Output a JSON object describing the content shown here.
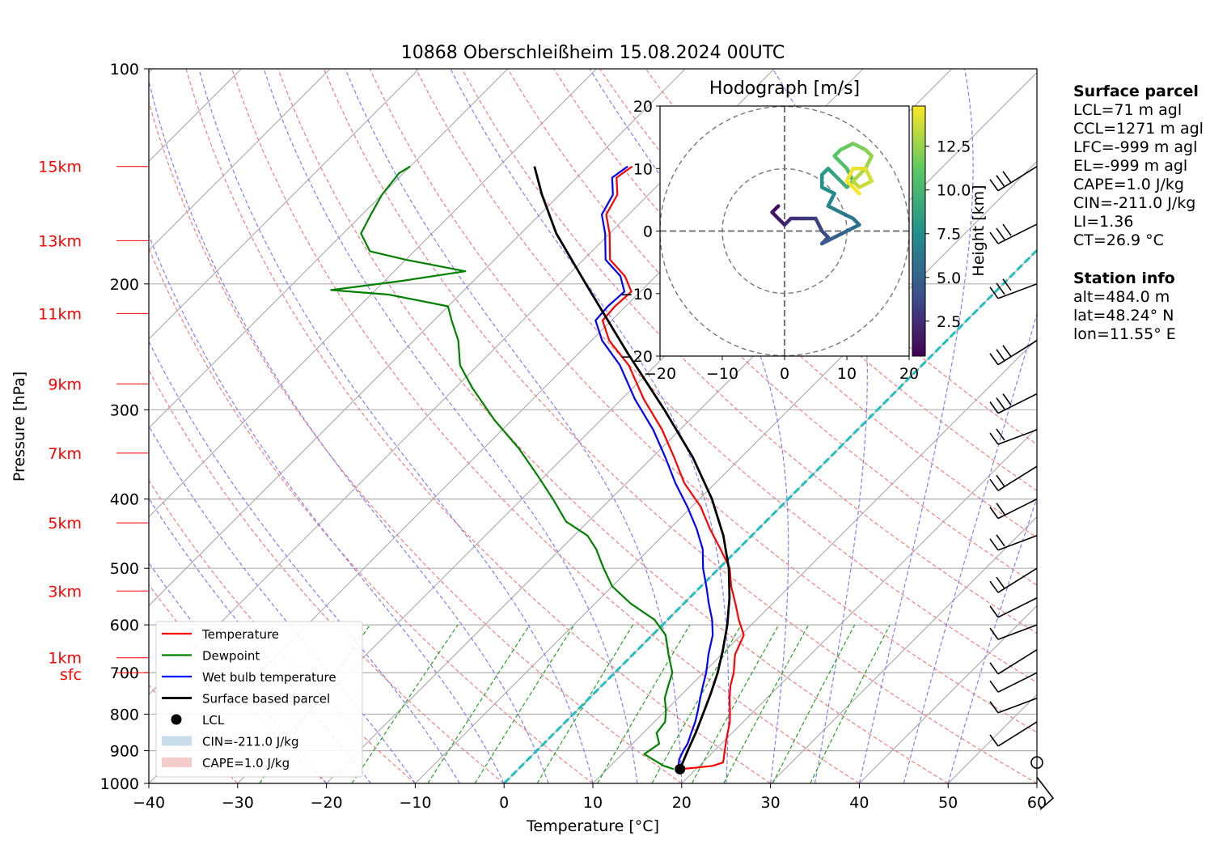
{
  "chart_data": {
    "type": "line",
    "title": "10868 Oberschleißheim 15.08.2024 00UTC",
    "xlabel": "Temperature [°C]",
    "ylabel": "Pressure [hPa]",
    "xlim": [
      -40,
      60
    ],
    "ylim": [
      1000,
      100
    ],
    "y_scale": "log",
    "skew": "45 degrees",
    "grid": true,
    "legend_position": "lower-left",
    "x_ticks": [
      "−40",
      "−30",
      "−20",
      "−10",
      "0",
      "10",
      "20",
      "30",
      "40",
      "50",
      "60"
    ],
    "y_ticks": [
      "100",
      "200",
      "300",
      "400",
      "500",
      "600",
      "700",
      "800",
      "900",
      "1000"
    ],
    "height_labels": [
      {
        "label": "15km",
        "p": 137
      },
      {
        "label": "13km",
        "p": 174
      },
      {
        "label": "11km",
        "p": 220
      },
      {
        "label": "9km",
        "p": 276
      },
      {
        "label": "7km",
        "p": 345
      },
      {
        "label": "5km",
        "p": 432
      },
      {
        "label": "3km",
        "p": 538
      },
      {
        "label": "1km",
        "p": 667
      },
      {
        "label": "sfc",
        "p": 700
      }
    ],
    "series": [
      {
        "name": "Temperature",
        "color": "#ff0000",
        "points": [
          [
            955,
            18.4
          ],
          [
            950,
            20.0
          ],
          [
            945,
            21.5
          ],
          [
            935,
            22.3
          ],
          [
            925,
            22.0
          ],
          [
            910,
            21.5
          ],
          [
            880,
            20.5
          ],
          [
            850,
            19.5
          ],
          [
            820,
            18.5
          ],
          [
            790,
            17.2
          ],
          [
            760,
            15.8
          ],
          [
            730,
            14.5
          ],
          [
            700,
            13.4
          ],
          [
            660,
            11.5
          ],
          [
            620,
            10.3
          ],
          [
            590,
            8.0
          ],
          [
            560,
            5.8
          ],
          [
            530,
            3.4
          ],
          [
            500,
            1.2
          ],
          [
            470,
            -2.0
          ],
          [
            440,
            -5.5
          ],
          [
            410,
            -9.0
          ],
          [
            380,
            -13.5
          ],
          [
            350,
            -17.5
          ],
          [
            320,
            -22.0
          ],
          [
            290,
            -27.5
          ],
          [
            260,
            -33.0
          ],
          [
            240,
            -38.0
          ],
          [
            225,
            -41.0
          ],
          [
            215,
            -41.2
          ],
          [
            205,
            -41.0
          ],
          [
            195,
            -43.5
          ],
          [
            185,
            -47.0
          ],
          [
            170,
            -50.0
          ],
          [
            160,
            -52.5
          ],
          [
            150,
            -53.5
          ],
          [
            142,
            -55.5
          ],
          [
            137,
            -55.0
          ]
        ]
      },
      {
        "name": "Dewpoint",
        "color": "#008000",
        "points": [
          [
            955,
            17.5
          ],
          [
            945,
            16.0
          ],
          [
            935,
            15.0
          ],
          [
            925,
            14.0
          ],
          [
            910,
            12.5
          ],
          [
            880,
            13.0
          ],
          [
            850,
            11.5
          ],
          [
            820,
            11.2
          ],
          [
            790,
            10.0
          ],
          [
            760,
            8.5
          ],
          [
            730,
            7.5
          ],
          [
            700,
            6.5
          ],
          [
            660,
            4.0
          ],
          [
            620,
            1.5
          ],
          [
            590,
            -1.5
          ],
          [
            560,
            -6.0
          ],
          [
            530,
            -10.0
          ],
          [
            500,
            -13.0
          ],
          [
            470,
            -16.0
          ],
          [
            450,
            -18.5
          ],
          [
            430,
            -22.5
          ],
          [
            400,
            -26.5
          ],
          [
            370,
            -31.0
          ],
          [
            340,
            -36.0
          ],
          [
            310,
            -42.0
          ],
          [
            280,
            -48.0
          ],
          [
            260,
            -52.0
          ],
          [
            240,
            -55.0
          ],
          [
            225,
            -58.0
          ],
          [
            215,
            -60.0
          ],
          [
            207,
            -68.0
          ],
          [
            204,
            -75.0
          ],
          [
            198,
            -68.0
          ],
          [
            192,
            -62.0
          ],
          [
            185,
            -70.0
          ],
          [
            180,
            -75.0
          ],
          [
            170,
            -78.0
          ],
          [
            160,
            -79.0
          ],
          [
            150,
            -80.0
          ],
          [
            140,
            -80.5
          ],
          [
            137,
            -80.0
          ]
        ]
      },
      {
        "name": "Wet bulb temperature",
        "color": "#0000ff",
        "points": [
          [
            955,
            17.9
          ],
          [
            940,
            17.5
          ],
          [
            925,
            17.0
          ],
          [
            900,
            16.5
          ],
          [
            880,
            16.2
          ],
          [
            850,
            15.4
          ],
          [
            820,
            14.6
          ],
          [
            790,
            13.6
          ],
          [
            760,
            12.5
          ],
          [
            730,
            11.4
          ],
          [
            700,
            10.3
          ],
          [
            660,
            8.5
          ],
          [
            620,
            6.8
          ],
          [
            590,
            5.0
          ],
          [
            560,
            2.8
          ],
          [
            530,
            0.6
          ],
          [
            500,
            -1.8
          ],
          [
            470,
            -4.0
          ],
          [
            440,
            -7.0
          ],
          [
            410,
            -10.5
          ],
          [
            380,
            -14.5
          ],
          [
            350,
            -18.5
          ],
          [
            320,
            -23.0
          ],
          [
            290,
            -28.5
          ],
          [
            260,
            -34.0
          ],
          [
            240,
            -38.8
          ],
          [
            225,
            -41.8
          ],
          [
            215,
            -42.0
          ],
          [
            205,
            -41.8
          ],
          [
            195,
            -44.0
          ],
          [
            185,
            -47.5
          ],
          [
            170,
            -50.5
          ],
          [
            160,
            -53.0
          ],
          [
            150,
            -54.0
          ],
          [
            142,
            -56.0
          ],
          [
            137,
            -55.5
          ]
        ]
      },
      {
        "name": "Surface based parcel",
        "color": "#000000",
        "points": [
          [
            955,
            18.2
          ],
          [
            900,
            17.0
          ],
          [
            850,
            15.9
          ],
          [
            800,
            14.6
          ],
          [
            750,
            13.2
          ],
          [
            700,
            11.6
          ],
          [
            650,
            9.6
          ],
          [
            600,
            7.3
          ],
          [
            550,
            4.5
          ],
          [
            500,
            1.1
          ],
          [
            450,
            -3.2
          ],
          [
            400,
            -8.6
          ],
          [
            350,
            -15.4
          ],
          [
            300,
            -24.0
          ],
          [
            250,
            -34.5
          ],
          [
            200,
            -47.0
          ],
          [
            170,
            -56.0
          ],
          [
            150,
            -62.0
          ],
          [
            137,
            -66.0
          ]
        ]
      }
    ],
    "lcl": {
      "name": "LCL",
      "p": 955,
      "t": 18.2
    },
    "legend": [
      {
        "label": "Temperature",
        "kind": "line",
        "color": "#ff0000"
      },
      {
        "label": "Dewpoint",
        "kind": "line",
        "color": "#008000"
      },
      {
        "label": "Wet bulb temperature",
        "kind": "line",
        "color": "#0000ff"
      },
      {
        "label": "Surface based parcel",
        "kind": "line",
        "color": "#000000"
      },
      {
        "label": "LCL",
        "kind": "dot",
        "color": "#000000"
      },
      {
        "label": "CIN=-211.0 J/kg",
        "kind": "patch",
        "color": "#c8dcea"
      },
      {
        "label": "CAPE=1.0 J/kg",
        "kind": "patch",
        "color": "#f5cccc"
      }
    ],
    "wind_barbs_label": "",
    "hodograph": {
      "title": "Hodograph [m/s]",
      "xlim": [
        -20,
        20
      ],
      "ylim": [
        -20,
        20
      ],
      "ticks": [
        "−20",
        "−10",
        "0",
        "10",
        "20"
      ],
      "rings": [
        10,
        20
      ],
      "colorbar_label": "Height [km]",
      "colorbar_ticks": [
        "2.5",
        "5.0",
        "7.5",
        "10.0",
        "12.5"
      ],
      "colorbar_range": [
        0.5,
        14.8
      ],
      "trace": [
        [
          -1,
          4,
          0.5
        ],
        [
          -2,
          3,
          1.0
        ],
        [
          -1,
          2,
          1.4
        ],
        [
          0,
          1,
          1.8
        ],
        [
          1,
          2,
          2.2
        ],
        [
          3,
          2,
          2.6
        ],
        [
          5,
          2,
          3.0
        ],
        [
          6,
          0,
          3.4
        ],
        [
          7,
          -1,
          3.8
        ],
        [
          6,
          -2,
          4.2
        ],
        [
          8,
          -1,
          4.6
        ],
        [
          10,
          0,
          5.0
        ],
        [
          12,
          1,
          5.4
        ],
        [
          11,
          2,
          5.8
        ],
        [
          9,
          3,
          6.2
        ],
        [
          7,
          4,
          6.6
        ],
        [
          8,
          6,
          7.0
        ],
        [
          6,
          7,
          7.4
        ],
        [
          6,
          9,
          7.8
        ],
        [
          7,
          10,
          8.2
        ],
        [
          8,
          9,
          8.6
        ],
        [
          9,
          8,
          9.0
        ],
        [
          10,
          7,
          9.4
        ],
        [
          11,
          8,
          9.8
        ],
        [
          10,
          10,
          10.2
        ],
        [
          8,
          12,
          10.6
        ],
        [
          9,
          13,
          11.0
        ],
        [
          11,
          14,
          11.4
        ],
        [
          13,
          13,
          11.8
        ],
        [
          14,
          12,
          12.2
        ],
        [
          13,
          10,
          12.6
        ],
        [
          11,
          8,
          13.0
        ],
        [
          12,
          7,
          13.3
        ],
        [
          14,
          8,
          13.6
        ],
        [
          13,
          10,
          13.9
        ],
        [
          11,
          10,
          14.2
        ],
        [
          10,
          8,
          14.5
        ],
        [
          12,
          6,
          14.8
        ]
      ]
    }
  },
  "surface_parcel": {
    "heading": "Surface parcel",
    "lines": [
      "LCL=71 m agl",
      "CCL=1271 m agl",
      "LFC=-999 m agl",
      "EL=-999 m agl",
      "CAPE=1.0 J/kg",
      "CIN=-211.0 J/kg",
      "LI=1.36",
      "CT=26.9 °C"
    ]
  },
  "station_info": {
    "heading": "Station info",
    "lines": [
      "alt=484.0 m",
      "lat=48.24° N",
      "lon=11.55° E"
    ]
  },
  "colors": {
    "isotherm": "#b0b0b0",
    "dry_adiabat": "#f08080",
    "moist_adiabat": "#8080f0",
    "mixing_ratio": "#2a9d2a",
    "freezing_level": "#1fbfbf",
    "height_label": "#ff0000"
  }
}
